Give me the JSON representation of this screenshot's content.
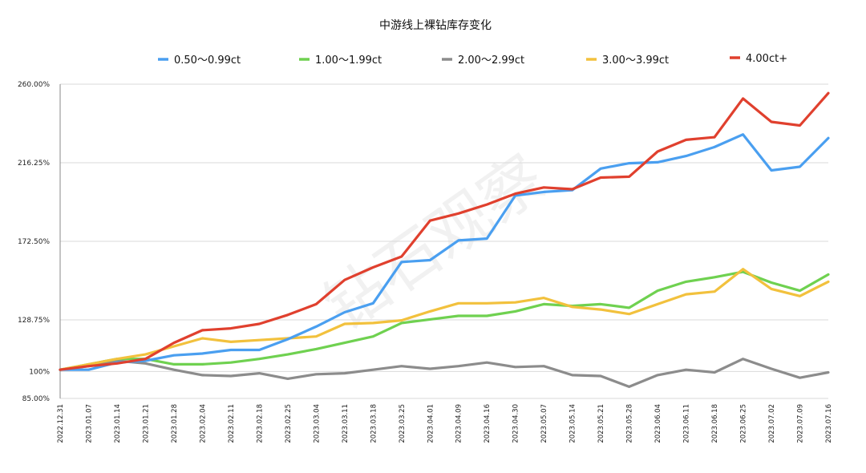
{
  "chart_data": {
    "type": "line",
    "title": "中游线上裸钻库存变化",
    "watermark": "钻石观察",
    "x": [
      "2022.12.31",
      "2023.01.07",
      "2023.01.14",
      "2023.01.21",
      "2023.01.28",
      "2023.02.04",
      "2023.02.11",
      "2023.02.18",
      "2023.02.25",
      "2023.03.04",
      "2023.03.11",
      "2023.03.18",
      "2023.03.25",
      "2023.04.01",
      "2023.04.09",
      "2023.04.16",
      "2023.04.30",
      "2023.05.07",
      "2023.05.14",
      "2023.05.21",
      "2023.05.28",
      "2023.06.04",
      "2023.06.11",
      "2023.06.18",
      "2023.06.25",
      "2023.07.02",
      "2023.07.09",
      "2023.07.16"
    ],
    "ylim": [
      85,
      260
    ],
    "yticks": [
      85,
      100,
      128.75,
      172.5,
      216.25,
      260
    ],
    "ytick_labels": [
      "85.00%",
      "100%",
      "128.75%",
      "172.50%",
      "216.25%",
      "260.00%"
    ],
    "xlabel": "",
    "ylabel": "",
    "grid": "horizontal",
    "legend_position": "top",
    "series": [
      {
        "name": "0.50～0.99ct",
        "color": "#4a9ff0",
        "values": [
          101,
          101,
          105,
          106,
          109,
          110,
          112,
          112,
          118,
          125,
          133,
          138,
          161,
          162,
          173,
          174,
          198,
          200,
          201,
          213,
          216,
          216.5,
          220,
          225,
          232,
          212,
          214,
          230
        ]
      },
      {
        "name": "1.00～1.99ct",
        "color": "#6fd150",
        "values": [
          101,
          104,
          107,
          107,
          104,
          104,
          105,
          107,
          109.5,
          112.5,
          116,
          119.5,
          127,
          129,
          131,
          131,
          133.5,
          137.5,
          136.5,
          137.5,
          135.5,
          145,
          150,
          152.5,
          155.5,
          149.5,
          145,
          154
        ]
      },
      {
        "name": "2.00～2.99ct",
        "color": "#8c8c8c",
        "values": [
          101,
          103,
          106,
          104.5,
          101,
          98,
          97.5,
          99,
          96,
          98.5,
          99,
          101,
          103,
          101.5,
          103,
          105,
          102.5,
          103,
          98,
          97.5,
          91.5,
          98,
          101,
          99.5,
          107,
          101.5,
          96.5,
          99.5
        ]
      },
      {
        "name": "3.00～3.99ct",
        "color": "#f2c13d",
        "values": [
          101,
          104,
          107,
          109.5,
          114,
          118.5,
          116.5,
          117.5,
          118.5,
          119.5,
          126.5,
          127,
          128.5,
          133.5,
          138,
          138,
          138.5,
          141,
          136,
          134.5,
          132,
          137.5,
          143,
          144.5,
          157,
          146,
          142,
          150
        ]
      },
      {
        "name": "4.00ct+",
        "color": "#e0402e",
        "values": [
          101,
          103,
          104.5,
          107,
          116,
          123,
          124,
          126.5,
          131.5,
          137.5,
          151,
          158,
          164,
          184,
          188,
          193,
          199,
          202.5,
          201.5,
          208,
          208.5,
          222.5,
          229,
          230.5,
          252,
          239,
          237,
          255
        ]
      }
    ]
  }
}
